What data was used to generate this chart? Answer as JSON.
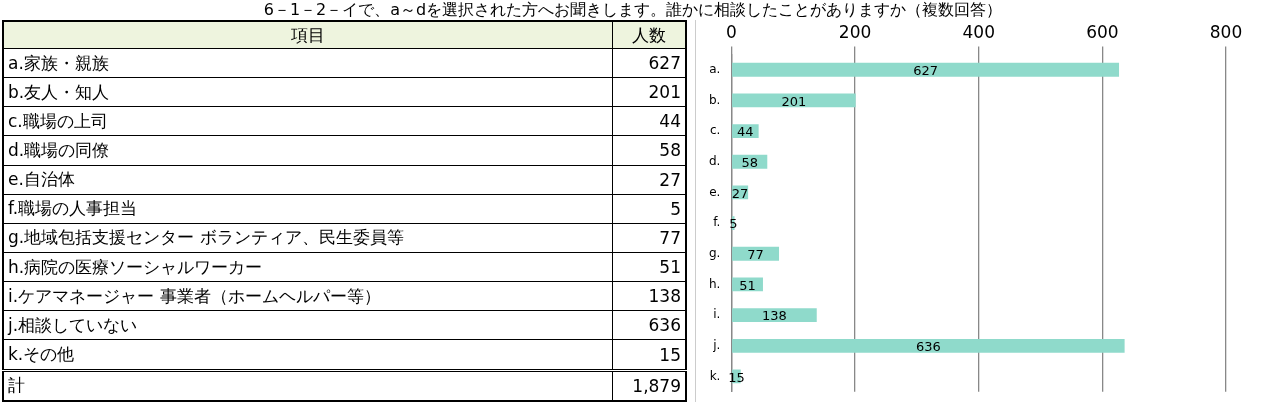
{
  "chart_data": {
    "type": "bar",
    "orientation": "horizontal",
    "title": "6－1－2－イで、a～dを選択された方へお聞きします。誰かに相談したことがありますか（複数回答）",
    "categories": [
      "a.",
      "b.",
      "c.",
      "d.",
      "e.",
      "f.",
      "g.",
      "h.",
      "i.",
      "j.",
      "k."
    ],
    "values": [
      627,
      201,
      44,
      58,
      27,
      5,
      77,
      51,
      138,
      636,
      15
    ],
    "color": "#8fdacb",
    "xlim": [
      0,
      800
    ],
    "xticks": [
      0,
      200,
      400,
      600,
      800
    ],
    "grid": "x",
    "data_labels": true,
    "legend": false,
    "annotations": [
      "項目",
      "人数",
      "a.家族・親族",
      "627",
      "b.友人・知人",
      "201",
      "c.職場の上司",
      "44",
      "d.職場の同僚",
      "58",
      "e.自治体",
      "27",
      "f.職場の人事担当",
      "5",
      "g.地域包括支援センター ボランティア、民生委員等",
      "77",
      "h.病院の医療ソーシャルワーカー",
      "51",
      "i.ケアマネージャー 事業者（ホームヘルパー等）",
      "138",
      "j.相談していない",
      "636",
      "k.その他",
      "15",
      "計",
      "1,879"
    ]
  }
}
